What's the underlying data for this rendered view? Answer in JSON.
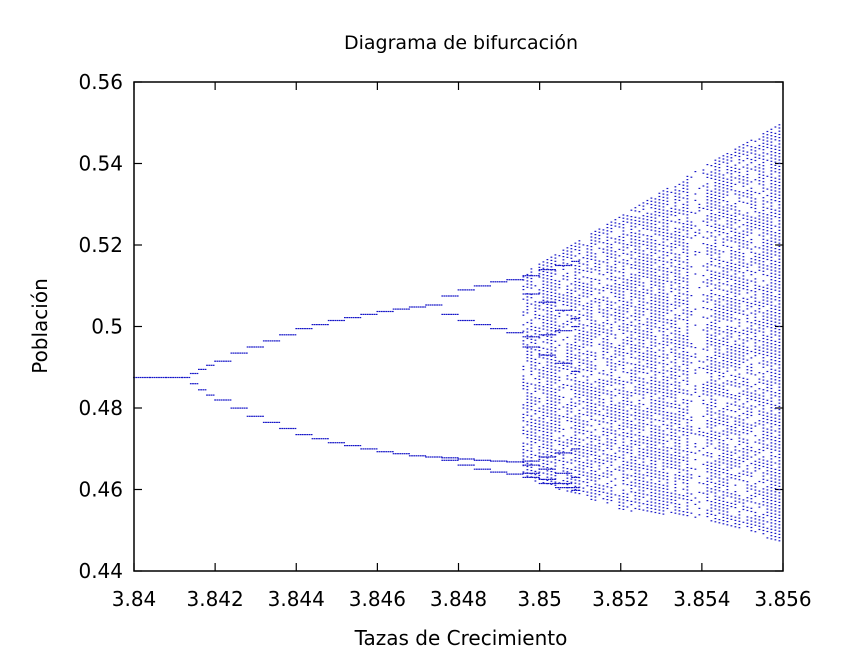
{
  "chart_data": {
    "type": "scatter",
    "title": "Diagrama de bifurcación",
    "xlabel": "Tazas de Crecimiento",
    "ylabel": "Población",
    "xlim": [
      3.84,
      3.856
    ],
    "ylim": [
      0.44,
      0.56
    ],
    "xticks": [
      "3.84",
      "3.842",
      "3.844",
      "3.846",
      "3.848",
      "3.85",
      "3.852",
      "3.854",
      "3.856"
    ],
    "yticks": [
      "0.44",
      "0.46",
      "0.48",
      "0.5",
      "0.52",
      "0.54",
      "0.56"
    ],
    "grid": false,
    "legend": "none",
    "point_color": "#1515c8",
    "r_step": 0.0002,
    "series": [
      {
        "values": [
          {
            "x": 3.84,
            "y": [
              0.4875
            ]
          },
          {
            "x": 3.8404,
            "y": [
              0.4875
            ]
          },
          {
            "x": 3.8408,
            "y": [
              0.4875
            ]
          },
          {
            "x": 3.8412,
            "y": [
              0.4875
            ]
          },
          {
            "x": 3.8414,
            "y": [
              0.4885,
              0.486
            ]
          },
          {
            "x": 3.8416,
            "y": [
              0.4895,
              0.4845
            ]
          },
          {
            "x": 3.8418,
            "y": [
              0.4905,
              0.4832
            ]
          },
          {
            "x": 3.842,
            "y": [
              0.4915,
              0.482
            ]
          },
          {
            "x": 3.8424,
            "y": [
              0.4935,
              0.48
            ]
          },
          {
            "x": 3.8428,
            "y": [
              0.495,
              0.478
            ]
          },
          {
            "x": 3.8432,
            "y": [
              0.4965,
              0.4765
            ]
          },
          {
            "x": 3.8436,
            "y": [
              0.498,
              0.475
            ]
          },
          {
            "x": 3.844,
            "y": [
              0.4995,
              0.4735
            ]
          },
          {
            "x": 3.8444,
            "y": [
              0.5005,
              0.4725
            ]
          },
          {
            "x": 3.8448,
            "y": [
              0.5015,
              0.4715
            ]
          },
          {
            "x": 3.8452,
            "y": [
              0.5022,
              0.4708
            ]
          },
          {
            "x": 3.8456,
            "y": [
              0.503,
              0.47
            ]
          },
          {
            "x": 3.846,
            "y": [
              0.5037,
              0.4693
            ]
          },
          {
            "x": 3.8464,
            "y": [
              0.5043,
              0.4688
            ]
          },
          {
            "x": 3.8468,
            "y": [
              0.5048,
              0.4683
            ]
          },
          {
            "x": 3.8472,
            "y": [
              0.5053,
              0.468
            ]
          },
          {
            "x": 3.8476,
            "y": [
              0.5075,
              0.503,
              0.4678,
              0.4672
            ]
          },
          {
            "x": 3.848,
            "y": [
              0.509,
              0.5015,
              0.4675,
              0.466
            ]
          },
          {
            "x": 3.8484,
            "y": [
              0.51,
              0.5005,
              0.4672,
              0.465
            ]
          },
          {
            "x": 3.8488,
            "y": [
              0.511,
              0.4995,
              0.467,
              0.4643
            ]
          },
          {
            "x": 3.8492,
            "y": [
              0.5115,
              0.4985,
              0.4668,
              0.4638
            ]
          },
          {
            "x": 3.8496,
            "y": [
              0.5125,
              0.508,
              0.4975,
              0.495,
              0.467,
              0.466,
              0.464,
              0.463
            ]
          },
          {
            "x": 3.85,
            "y": [
              0.514,
              0.506,
              0.498,
              0.493,
              0.468,
              0.465,
              0.4625,
              0.4615
            ]
          },
          {
            "x": 3.8504,
            "y": [
              0.515,
              0.504,
              0.499,
              0.491,
              0.469,
              0.464,
              0.4615,
              0.4605
            ]
          },
          {
            "x": 3.8508,
            "y": [
              0.516,
              0.502,
              0.5,
              0.489,
              0.47,
              0.463,
              0.4605,
              0.4598
            ]
          }
        ]
      }
    ],
    "chaotic_band": {
      "r_start": 3.8496,
      "r_end": 3.856,
      "upper": [
        [
          3.8496,
          0.513
        ],
        [
          3.852,
          0.527
        ],
        [
          3.854,
          0.539
        ],
        [
          3.856,
          0.55
        ]
      ],
      "lower": [
        [
          3.8496,
          0.463
        ],
        [
          3.852,
          0.455
        ],
        [
          3.854,
          0.453
        ],
        [
          3.856,
          0.447
        ]
      ],
      "periodic_window": {
        "r_start": 3.8537,
        "r_end": 3.8541
      }
    }
  }
}
